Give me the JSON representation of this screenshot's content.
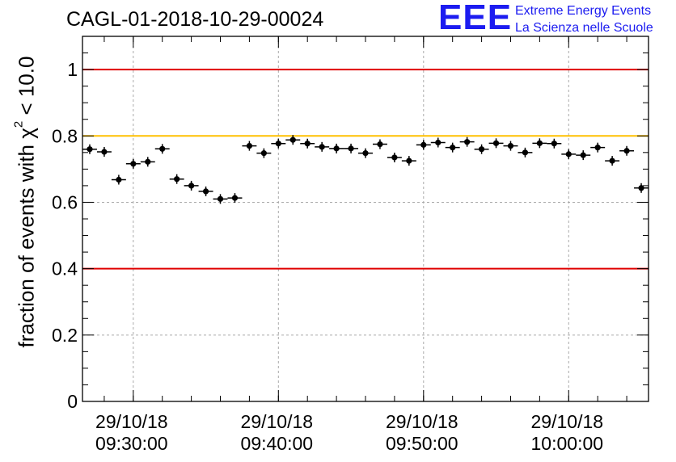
{
  "header": {
    "title": "CAGL-01-2018-10-29-00024",
    "logo_text": "EEE",
    "logo_line1": "Extreme Energy Events",
    "logo_line2": "La Scienza nelle Scuole"
  },
  "chart_data": {
    "type": "scatter",
    "title": "CAGL-01-2018-10-29-00024",
    "ylabel_prefix": "fraction of events with χ",
    "ylabel_sup": "2",
    "ylabel_suffix": " < 10.0",
    "xlabel": "",
    "ylim": [
      0,
      1.1
    ],
    "yticks": [
      0,
      0.2,
      0.4,
      0.6,
      0.8,
      1
    ],
    "ytick_labels": [
      "0",
      "0.2",
      "0.4",
      "0.6",
      "0.8",
      "1"
    ],
    "xlim_minutes_after_0930": [
      -3.5,
      35.5
    ],
    "xtick_minutes_after_0930": [
      0,
      10,
      20,
      30
    ],
    "xtick_labels": [
      [
        "29/10/18",
        "09:30:00"
      ],
      [
        "29/10/18",
        "09:40:00"
      ],
      [
        "29/10/18",
        "09:50:00"
      ],
      [
        "29/10/18",
        "10:00:00"
      ]
    ],
    "grid": true,
    "reference_lines": [
      {
        "y": 1.0,
        "color": "#e00000"
      },
      {
        "y": 0.8,
        "color": "#ffc000"
      },
      {
        "y": 0.4,
        "color": "#e00000"
      }
    ],
    "marker_color": "#000000",
    "bin_width_minutes": 1,
    "x_minutes_after_0930": [
      -3,
      -2,
      -1,
      0,
      1,
      2,
      3,
      4,
      5,
      6,
      7,
      8,
      9,
      10,
      11,
      12,
      13,
      14,
      15,
      16,
      17,
      18,
      19,
      20,
      21,
      22,
      23,
      24,
      25,
      26,
      27,
      28,
      29,
      30,
      31,
      32,
      33,
      34,
      35
    ],
    "values": [
      0.76,
      0.752,
      0.668,
      0.716,
      0.722,
      0.761,
      0.67,
      0.65,
      0.633,
      0.61,
      0.613,
      0.77,
      0.748,
      0.777,
      0.788,
      0.777,
      0.767,
      0.762,
      0.762,
      0.748,
      0.775,
      0.735,
      0.725,
      0.773,
      0.78,
      0.765,
      0.782,
      0.76,
      0.778,
      0.77,
      0.75,
      0.778,
      0.777,
      0.745,
      0.742,
      0.765,
      0.725,
      0.755,
      0.643
    ]
  }
}
